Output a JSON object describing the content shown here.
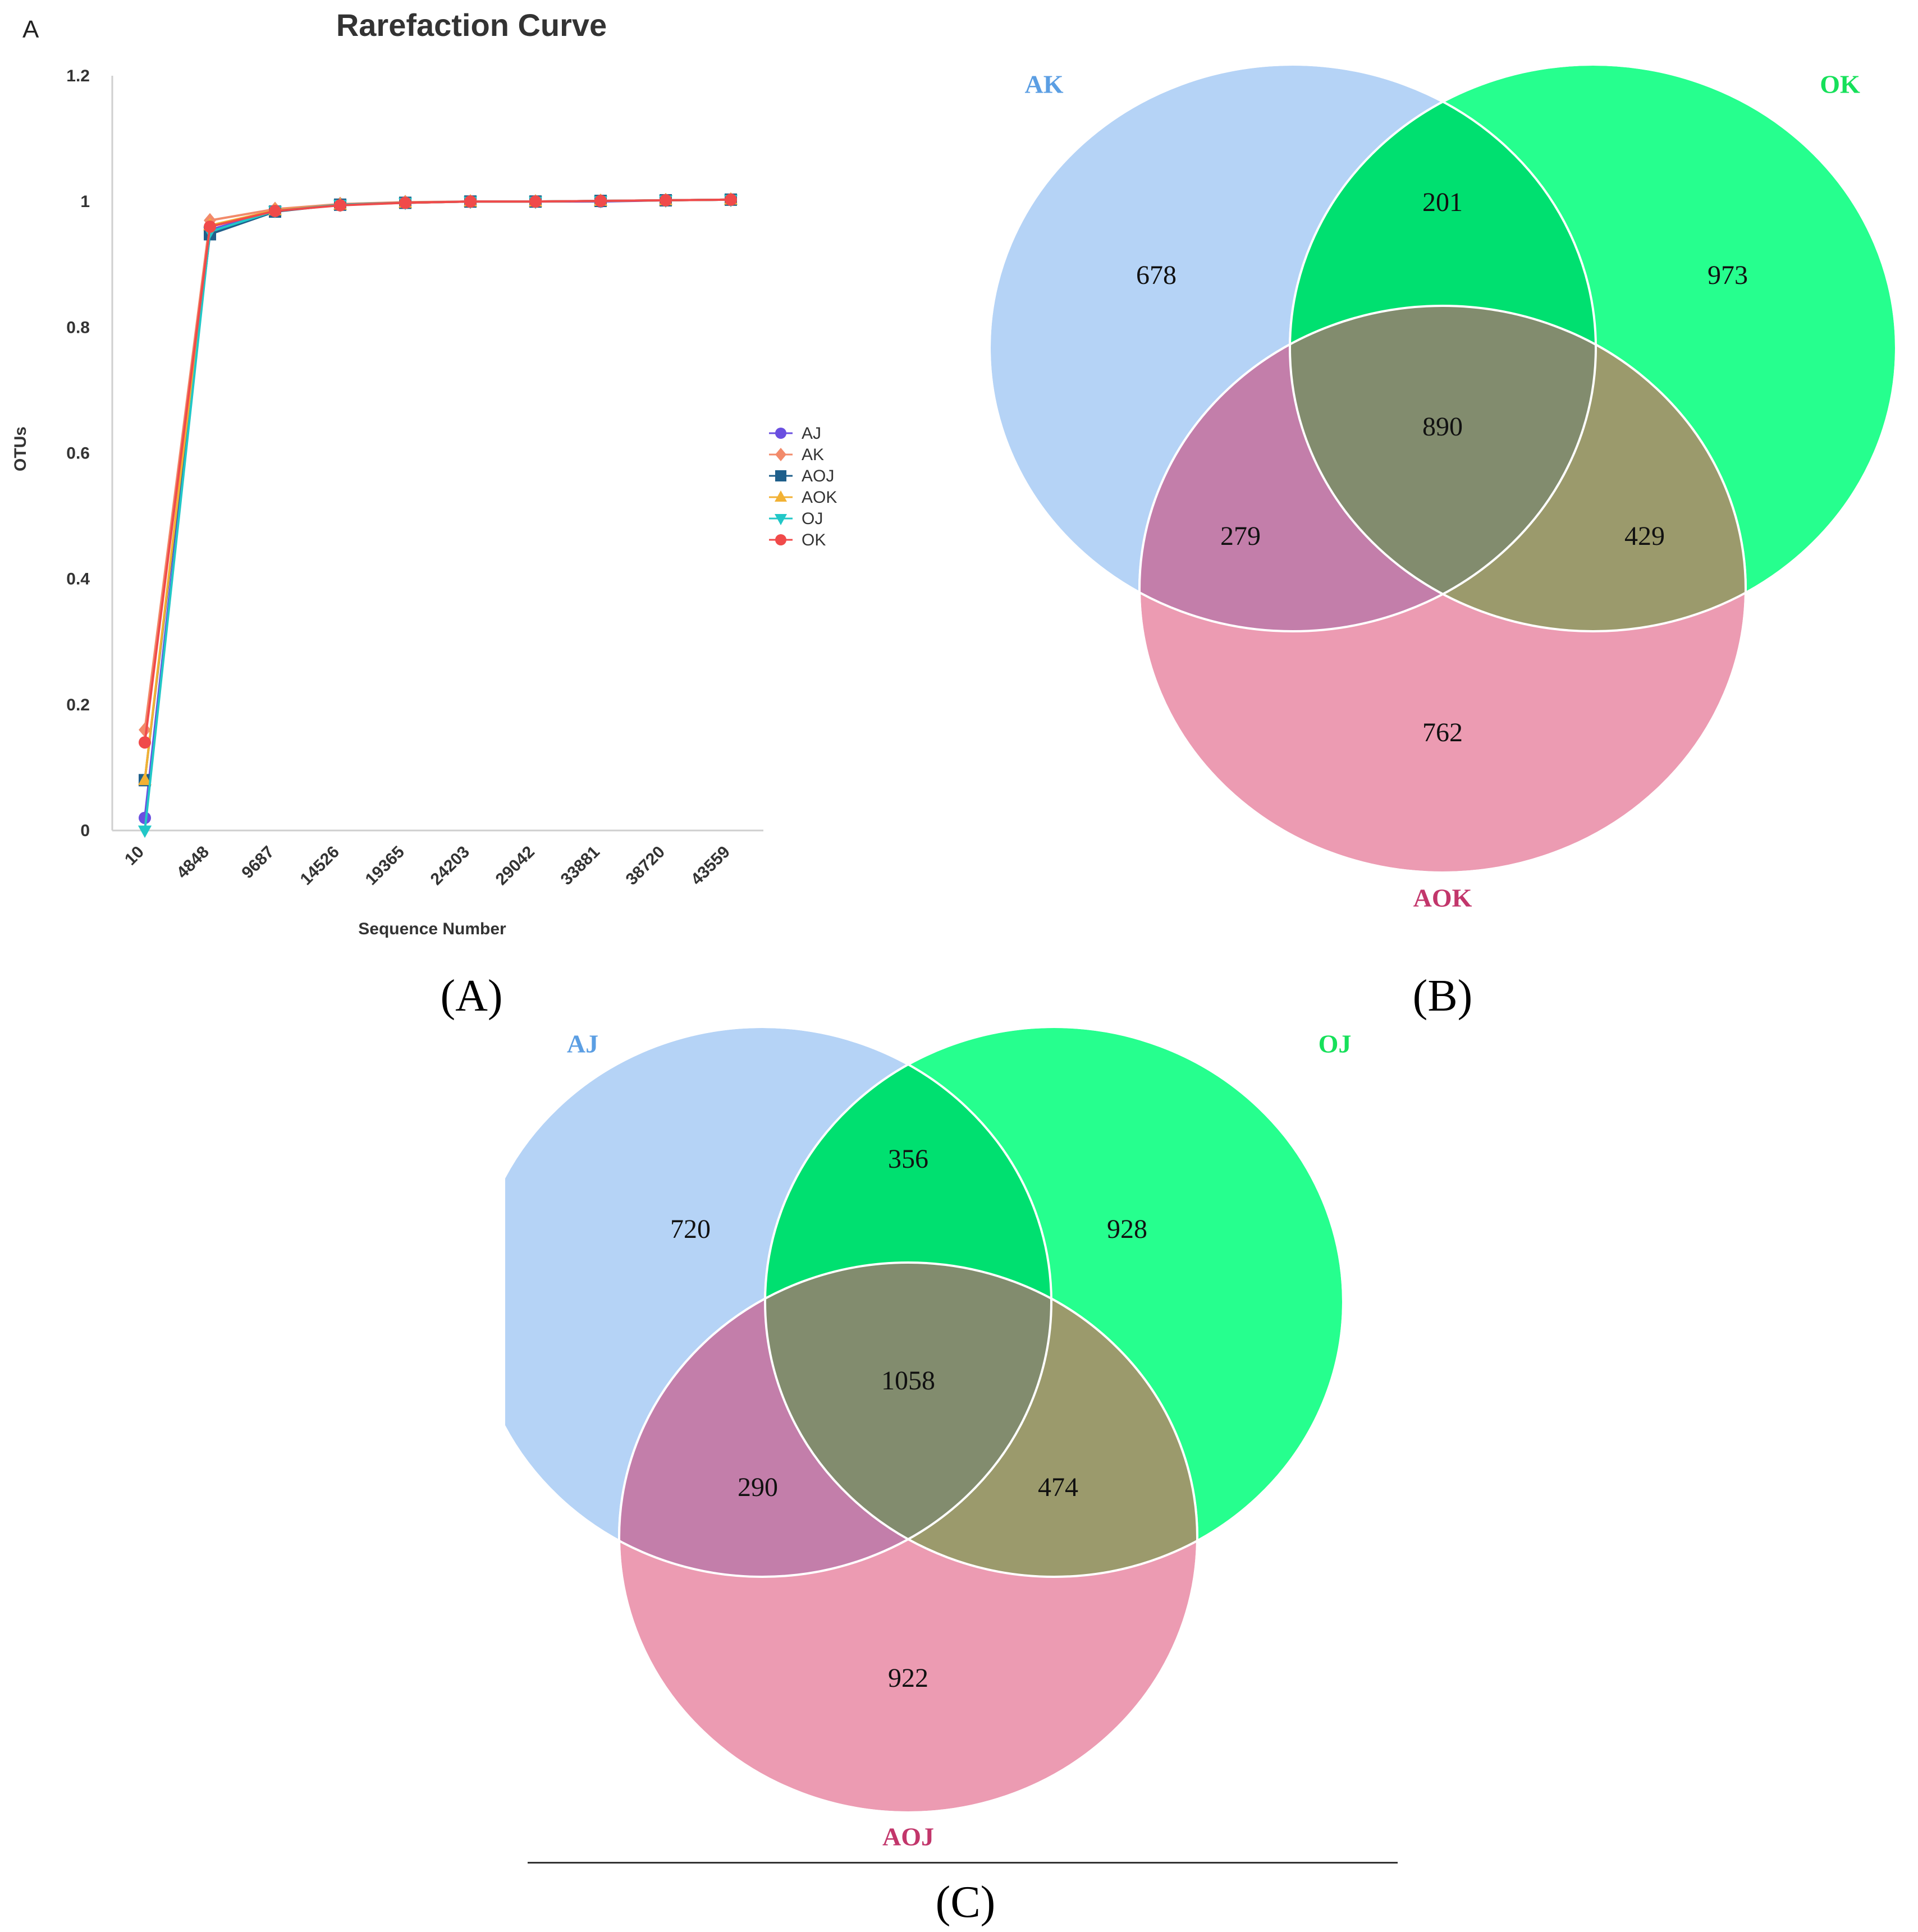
{
  "panel_a": {
    "corner_label": "A",
    "caption": "(A)"
  },
  "panel_b": {
    "caption": "(B)"
  },
  "panel_c": {
    "caption": "(C)"
  },
  "chart_data": [
    {
      "type": "line",
      "title": "Rarefaction Curve",
      "xlabel": "Sequence Number",
      "ylabel": "OTUs",
      "categories": [
        "10",
        "4848",
        "9687",
        "14526",
        "19365",
        "24203",
        "29042",
        "33881",
        "38720",
        "43559"
      ],
      "ylim": [
        0,
        1.2
      ],
      "yticks": [
        "0",
        "0.2",
        "0.4",
        "0.6",
        "0.8",
        "1",
        "1.2"
      ],
      "ytick_values": [
        0,
        0.2,
        0.4,
        0.6,
        0.8,
        1.0,
        1.2
      ],
      "legend_position": "right",
      "series": [
        {
          "name": "AJ",
          "color": "#6a4fe0",
          "marker": "circle",
          "values": [
            0.02,
            0.955,
            0.985,
            0.995,
            0.998,
            1.0,
            1.0,
            1.0,
            1.002,
            1.003
          ]
        },
        {
          "name": "AK",
          "color": "#f28a6a",
          "marker": "diamond",
          "values": [
            0.16,
            0.97,
            0.988,
            0.996,
            0.999,
            1.0,
            1.0,
            1.001,
            1.002,
            1.003
          ]
        },
        {
          "name": "AOJ",
          "color": "#1f5f8b",
          "marker": "square",
          "values": [
            0.08,
            0.948,
            0.984,
            0.995,
            0.998,
            1.0,
            1.0,
            1.001,
            1.002,
            1.003
          ]
        },
        {
          "name": "AOK",
          "color": "#f2b134",
          "marker": "triangle-up",
          "values": [
            0.08,
            0.962,
            0.986,
            0.995,
            0.998,
            1.0,
            1.0,
            1.001,
            1.002,
            1.003
          ]
        },
        {
          "name": "OJ",
          "color": "#22c7c7",
          "marker": "triangle-down",
          "values": [
            0.0,
            0.952,
            0.985,
            0.995,
            0.998,
            1.0,
            1.0,
            1.001,
            1.002,
            1.003
          ]
        },
        {
          "name": "OK",
          "color": "#f04a4a",
          "marker": "circle",
          "values": [
            0.14,
            0.96,
            0.985,
            0.994,
            0.998,
            1.0,
            1.0,
            1.001,
            1.002,
            1.003
          ]
        }
      ]
    },
    {
      "type": "venn",
      "sets": [
        "AK",
        "OK",
        "AOK"
      ],
      "set_colors": [
        "#5b9ee3",
        "#16e05a",
        "#c2366b"
      ],
      "regions": {
        "AK_only": 678,
        "OK_only": 973,
        "AOK_only": 762,
        "AK_OK": 201,
        "AK_AOK": 279,
        "OK_AOK": 429,
        "all": 890
      }
    },
    {
      "type": "venn",
      "sets": [
        "AJ",
        "OJ",
        "AOJ"
      ],
      "set_colors": [
        "#5b9ee3",
        "#16e05a",
        "#c2366b"
      ],
      "regions": {
        "AJ_only": 720,
        "OJ_only": 928,
        "AOJ_only": 922,
        "AJ_OJ": 356,
        "AJ_AOJ": 290,
        "OJ_AOJ": 474,
        "all": 1058
      }
    }
  ]
}
